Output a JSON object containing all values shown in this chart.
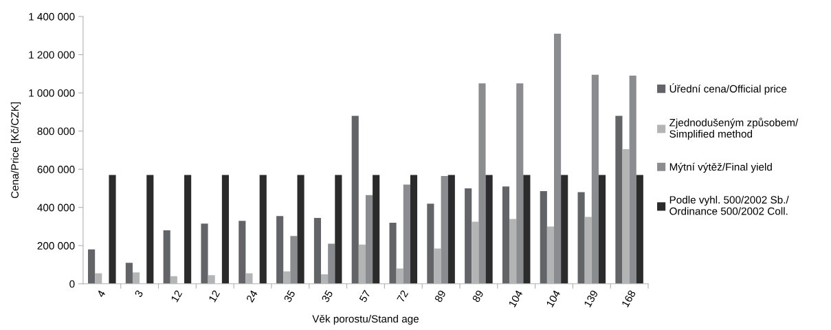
{
  "chart_data": {
    "type": "bar",
    "xlabel": "Věk porostu/Stand age",
    "ylabel": "Cena/Price [Kč/CZK]",
    "categories": [
      "4",
      "3",
      "12",
      "12",
      "24",
      "35",
      "35",
      "57",
      "72",
      "89",
      "89",
      "104",
      "104",
      "139",
      "168"
    ],
    "series": [
      {
        "name": "Úřední cena/Official price",
        "color": "#636467",
        "values": [
          180000,
          110000,
          280000,
          315000,
          330000,
          355000,
          345000,
          880000,
          320000,
          420000,
          500000,
          510000,
          485000,
          480000,
          880000
        ]
      },
      {
        "name": "Zjednodušeným způsobem/\nSimplified method",
        "color": "#b3b4b6",
        "values": [
          55000,
          60000,
          40000,
          45000,
          55000,
          65000,
          50000,
          205000,
          80000,
          185000,
          325000,
          340000,
          300000,
          350000,
          705000
        ]
      },
      {
        "name": "Mýtní výtěž/Final yield",
        "color": "#8b8c90",
        "values": [
          null,
          null,
          null,
          null,
          null,
          250000,
          210000,
          465000,
          520000,
          565000,
          1050000,
          1050000,
          1310000,
          1095000,
          1090000
        ]
      },
      {
        "name": "Podle vyhl. 500/2002 Sb./\nOrdinance 500/2002 Coll.",
        "color": "#2b2b2b",
        "values": [
          570000,
          570000,
          570000,
          570000,
          570000,
          570000,
          570000,
          570000,
          570000,
          570000,
          570000,
          570000,
          570000,
          570000,
          570000
        ]
      }
    ],
    "ylim": [
      0,
      1400000
    ],
    "yticks": [
      {
        "value": 0,
        "label": "0"
      },
      {
        "value": 200000,
        "label": "200 000"
      },
      {
        "value": 400000,
        "label": "400 000"
      },
      {
        "value": 600000,
        "label": "600 000"
      },
      {
        "value": 800000,
        "label": "800 000"
      },
      {
        "value": 1000000,
        "label": "1 000 000"
      },
      {
        "value": 1200000,
        "label": "1 200 000"
      },
      {
        "value": 1400000,
        "label": "1 400 000"
      }
    ],
    "grid": false,
    "legend": "right"
  }
}
